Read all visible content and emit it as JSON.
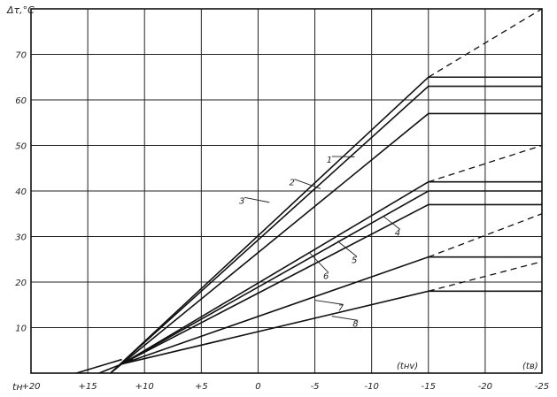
{
  "chart_data": {
    "type": "line",
    "title": "",
    "ylabel": "Δτ,°C",
    "xlabel": "tн",
    "x_axis_note_1": "(tнv)",
    "x_axis_note_2": "(tв)",
    "x_ticks": [
      "+20",
      "+15",
      "+10",
      "+5",
      "0",
      "-5",
      "-10",
      "-15",
      "-20",
      "-25"
    ],
    "y_ticks": [
      "10",
      "20",
      "30",
      "40",
      "50",
      "60",
      "70"
    ],
    "xlim": [
      20,
      -25
    ],
    "ylim": [
      0,
      80
    ],
    "grid": true,
    "series": [
      {
        "name": "1",
        "points": [
          [
            13,
            0
          ],
          [
            -15,
            65
          ]
        ],
        "plateau": 65,
        "dashed_to": [
          [
            -15,
            65
          ],
          [
            -25,
            80
          ]
        ]
      },
      {
        "name": "2",
        "points": [
          [
            13,
            0
          ],
          [
            -15,
            63
          ]
        ],
        "plateau": 63
      },
      {
        "name": "3",
        "points": [
          [
            13,
            0
          ],
          [
            -15,
            57
          ]
        ],
        "plateau": 57
      },
      {
        "name": "4",
        "points": [
          [
            12,
            2
          ],
          [
            -15,
            42
          ]
        ],
        "plateau": 42,
        "dashed_to": [
          [
            -15,
            42
          ],
          [
            -25,
            50
          ]
        ]
      },
      {
        "name": "5",
        "points": [
          [
            12,
            2
          ],
          [
            -15,
            40
          ]
        ],
        "plateau": 40
      },
      {
        "name": "6",
        "points": [
          [
            12,
            2
          ],
          [
            -15,
            37
          ]
        ],
        "plateau": 37
      },
      {
        "name": "7",
        "points": [
          [
            12,
            2
          ],
          [
            -15,
            25.5
          ]
        ],
        "plateau": 25.5,
        "dashed_to": [
          [
            -15,
            25.5
          ],
          [
            -25,
            35
          ]
        ]
      },
      {
        "name": "8",
        "points": [
          [
            12,
            2
          ],
          [
            -15,
            18
          ]
        ],
        "plateau": 18,
        "dashed_to": [
          [
            -15,
            18
          ],
          [
            -25,
            24.5
          ]
        ]
      }
    ],
    "extra_lines": [
      {
        "name": "",
        "points": [
          [
            16,
            0
          ],
          [
            12,
            3
          ]
        ]
      },
      {
        "name": "",
        "points": [
          [
            14,
            0
          ],
          [
            11,
            3
          ]
        ]
      }
    ]
  }
}
